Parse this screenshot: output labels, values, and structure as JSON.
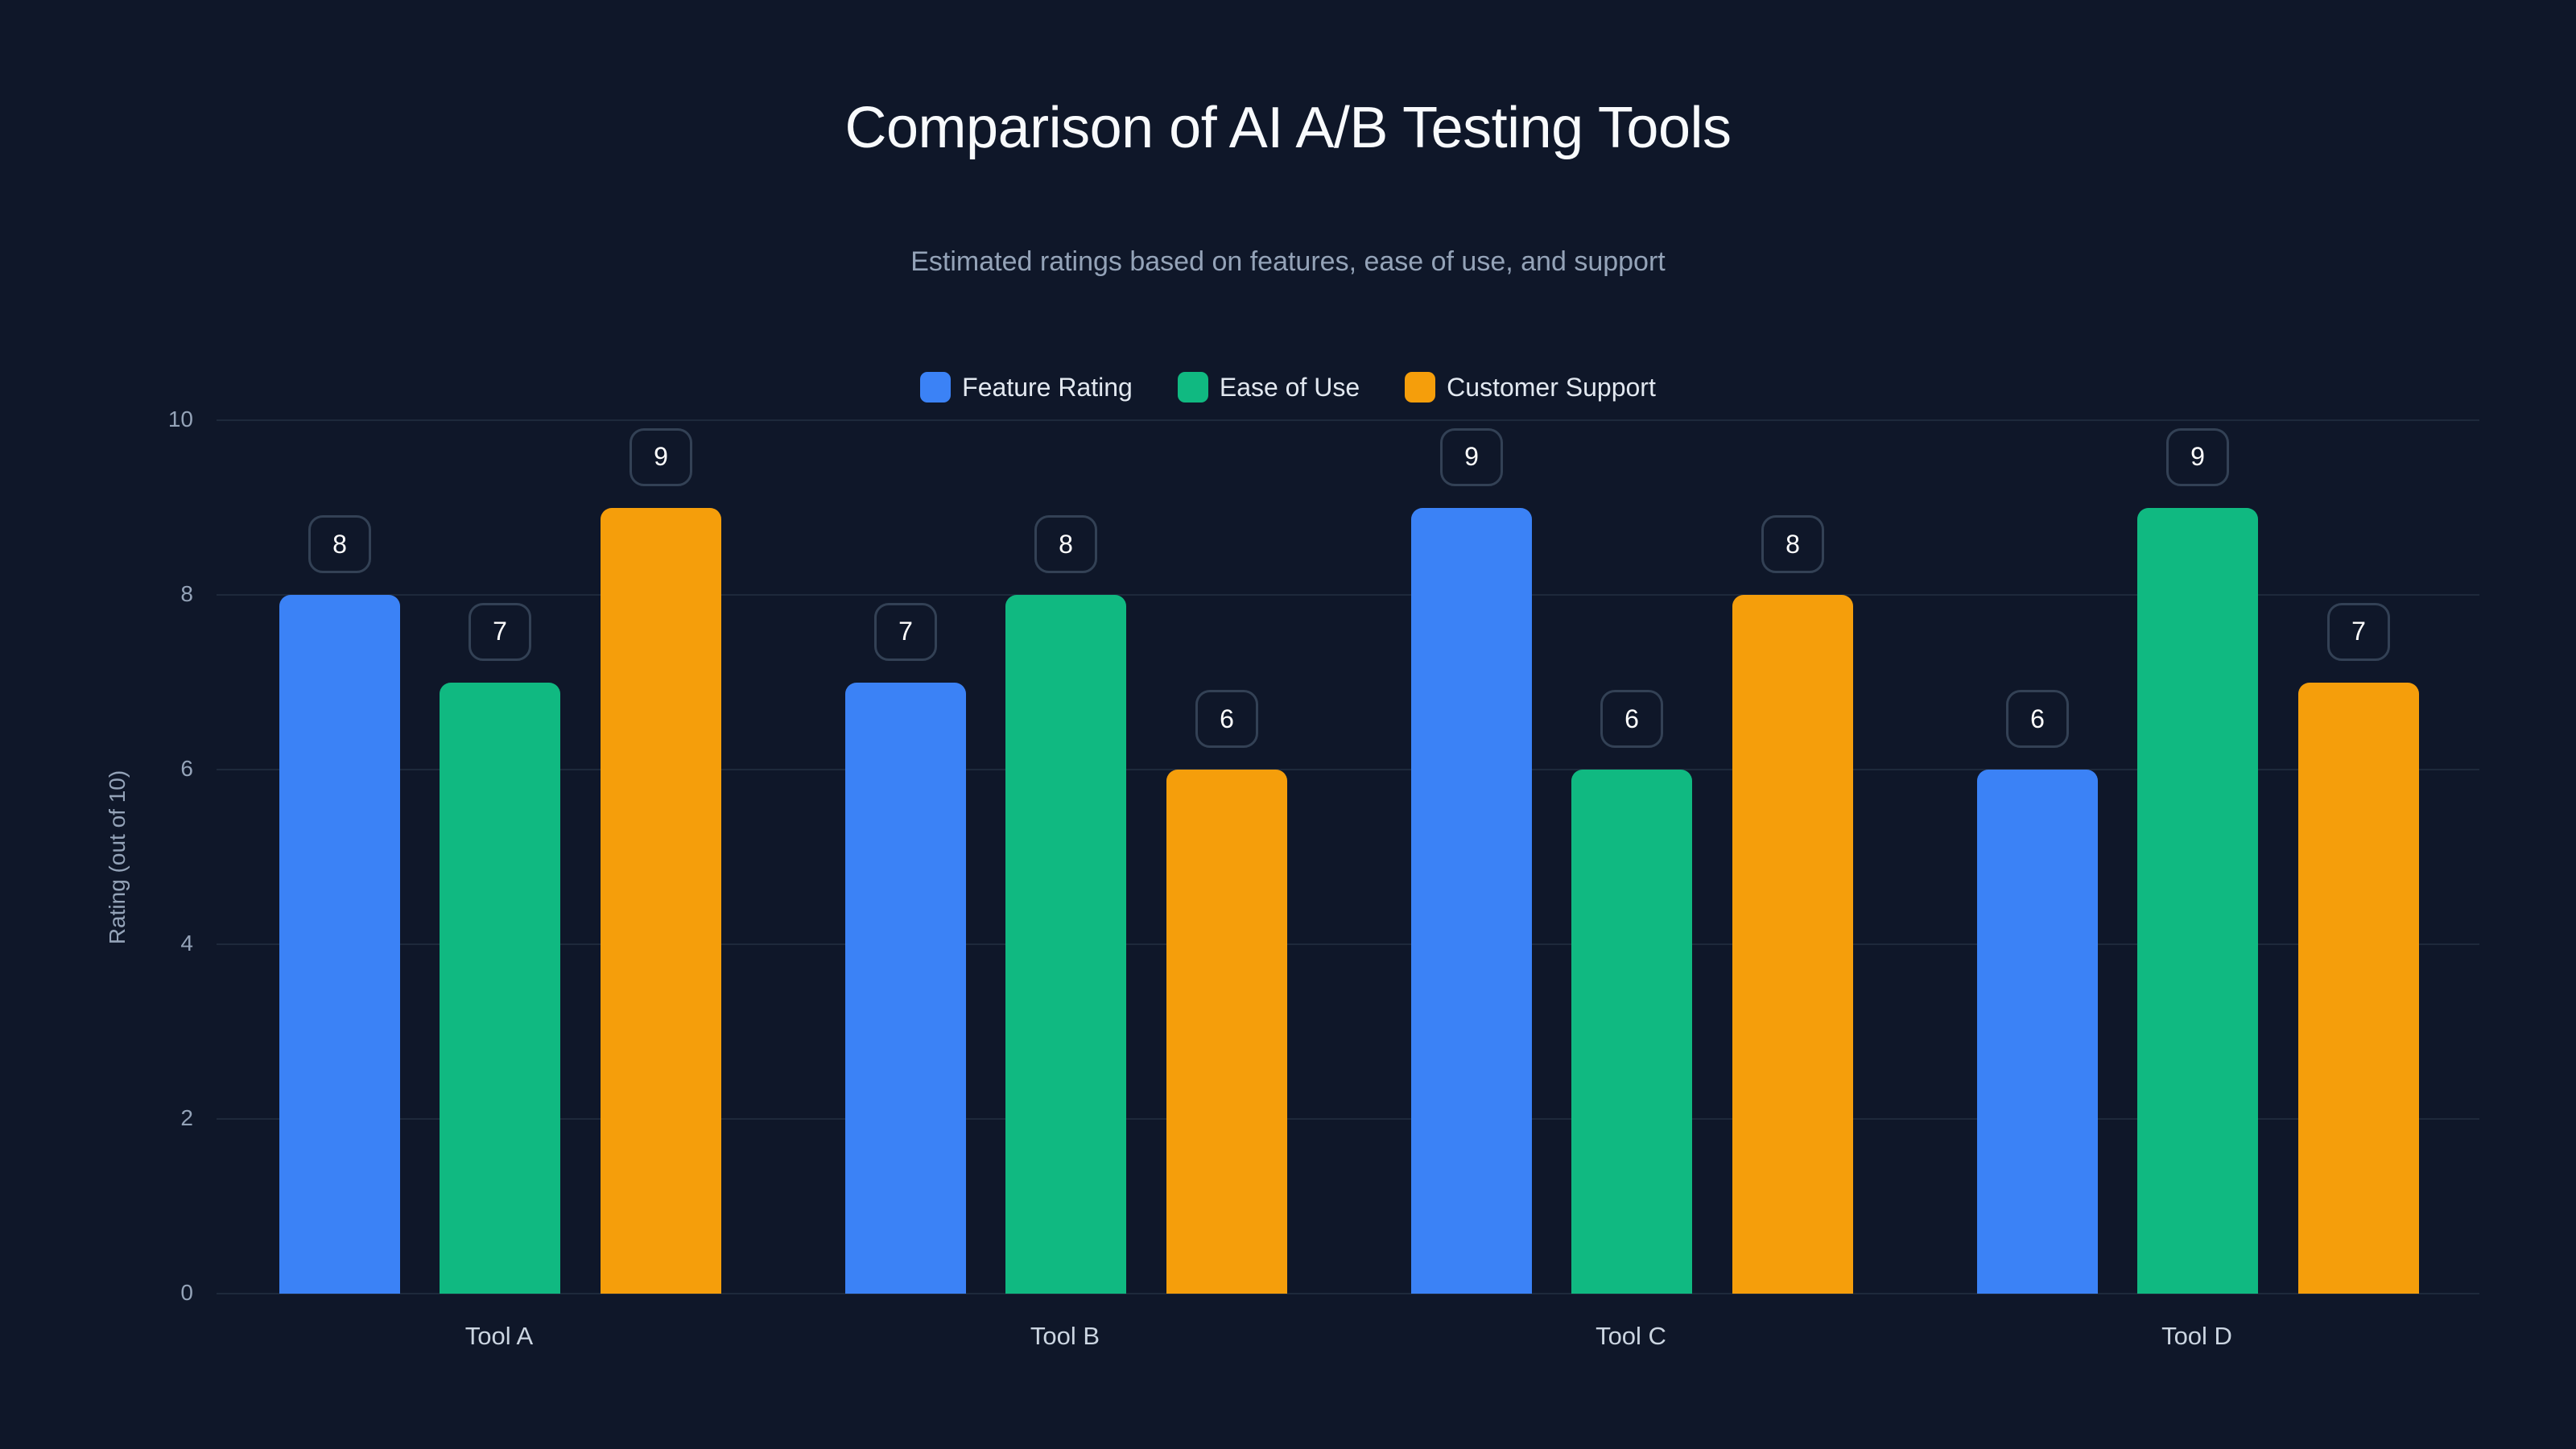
{
  "title": "Comparison of AI A/B Testing Tools",
  "subtitle": "Estimated ratings based on features, ease of use, and support",
  "legend": [
    {
      "label": "Feature Rating",
      "color": "#3B82F6"
    },
    {
      "label": "Ease of Use",
      "color": "#10B981"
    },
    {
      "label": "Customer Support",
      "color": "#F59E0B"
    }
  ],
  "y_axis": {
    "title": "Rating (out of 10)",
    "ticks": [
      "0",
      "2",
      "4",
      "6",
      "8",
      "10"
    ]
  },
  "colors": {
    "background": "#0f1729",
    "grid": "#1e293b",
    "label_border": "#334155"
  },
  "chart_data": {
    "type": "bar",
    "title": "Comparison of AI A/B Testing Tools",
    "subtitle": "Estimated ratings based on features, ease of use, and support",
    "categories": [
      "Tool A",
      "Tool B",
      "Tool C",
      "Tool D"
    ],
    "series": [
      {
        "name": "Feature Rating",
        "color": "#3B82F6",
        "values": [
          8,
          7,
          9,
          6
        ]
      },
      {
        "name": "Ease of Use",
        "color": "#10B981",
        "values": [
          7,
          8,
          6,
          9
        ]
      },
      {
        "name": "Customer Support",
        "color": "#F59E0B",
        "values": [
          9,
          6,
          8,
          7
        ]
      }
    ],
    "xlabel": "",
    "ylabel": "Rating (out of 10)",
    "ylim": [
      0,
      10
    ],
    "yticks": [
      0,
      2,
      4,
      6,
      8,
      10
    ],
    "grid": true,
    "legend_position": "top",
    "data_labels": true
  }
}
